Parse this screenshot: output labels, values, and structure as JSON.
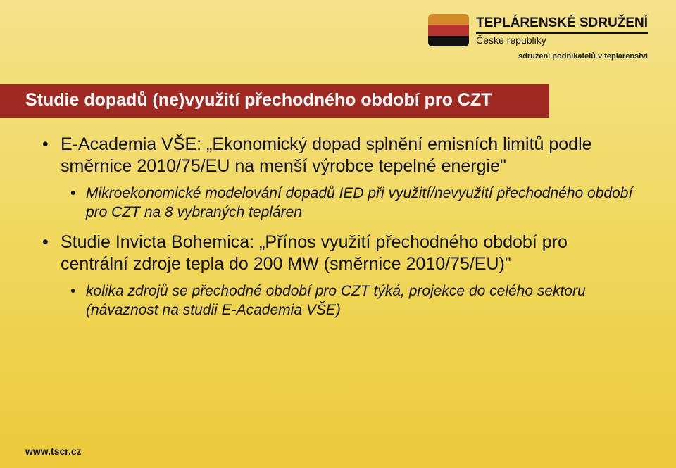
{
  "logo": {
    "line1": "TEPLÁRENSKÉ SDRUŽENÍ",
    "line2": "České republiky",
    "tagline": "sdružení podnikatelů v teplárenství",
    "stripe_colors": [
      "#d38b2a",
      "#b8332e",
      "#111111"
    ]
  },
  "title": "Studie dopadů (ne)využití přechodného období pro CZT",
  "title_bar_bg": "#9e2a22",
  "title_bar_fg": "#ffffff",
  "background_gradient": [
    "#f5e28a",
    "#f0d85e",
    "#ecc93a"
  ],
  "bullets": [
    {
      "text_prefix": "E-Academia VŠE: ",
      "text_quote": "„Ekonomický dopad splnění emisních limitů podle směrnice 2010/75/EU na menší výrobce tepelné energie\"",
      "sub": [
        "Mikroekonomické modelování dopadů IED při využití/nevyužití přechodného období pro CZT na 8 vybraných tepláren"
      ]
    },
    {
      "text_prefix": "Studie Invicta Bohemica: ",
      "text_quote": "„Přínos využití přechodného období pro centrální zdroje tepla do 200 MW (směrnice 2010/75/EU)\"",
      "sub": [
        "kolika zdrojů se přechodné období pro CZT týká, projekce do celého sektoru (návaznost na studii E-Academia VŠE)"
      ]
    }
  ],
  "footer": "www.tscr.cz"
}
